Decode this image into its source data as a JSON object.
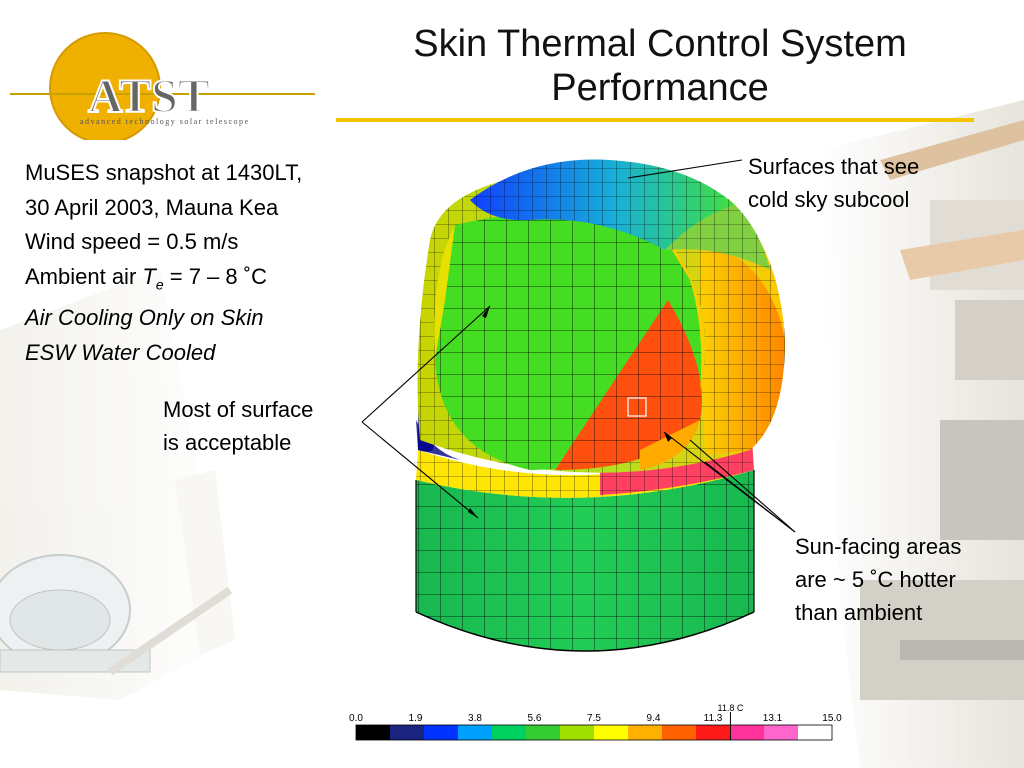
{
  "slide": {
    "title_line1": "Skin Thermal Control System",
    "title_line2": "Performance",
    "logo": {
      "text": "ATST",
      "subtitle": "advanced technology solar telescope"
    }
  },
  "info": {
    "line1": "MuSES snapshot at 1430LT,",
    "line2": "30 April 2003, Mauna Kea",
    "line3": "Wind speed = 0.5 m/s",
    "line4_prefix": "Ambient air ",
    "line4_var": "T",
    "line4_sub": "e",
    "line4_suffix": " = 7 – 8 ˚C",
    "line5": "Air Cooling Only on Skin",
    "line6": "ESW Water Cooled"
  },
  "annotations": {
    "cold_line1": "Surfaces that see",
    "cold_line2": "cold sky subcool",
    "ok_line1": "Most of surface",
    "ok_line2": "is acceptable",
    "sun_line1": "Sun-facing areas",
    "sun_line2": "are ~ 5 ˚C hotter",
    "sun_line3": "than ambient"
  },
  "color_scale": {
    "ticks": [
      "0.0",
      "1.9",
      "3.8",
      "5.6",
      "7.5",
      "9.4",
      "11.3",
      "13.1",
      "15.0"
    ],
    "current_label": "11.8 C",
    "current_value": 11.8,
    "min": 0.0,
    "max": 15.0,
    "colors": [
      "#000000",
      "#1a237e",
      "#0033ff",
      "#00a0ff",
      "#00d060",
      "#33cc33",
      "#a0e000",
      "#ffff00",
      "#ffb000",
      "#ff6000",
      "#ff1a1a",
      "#ff3399",
      "#ff66cc",
      "#ffffff"
    ]
  }
}
